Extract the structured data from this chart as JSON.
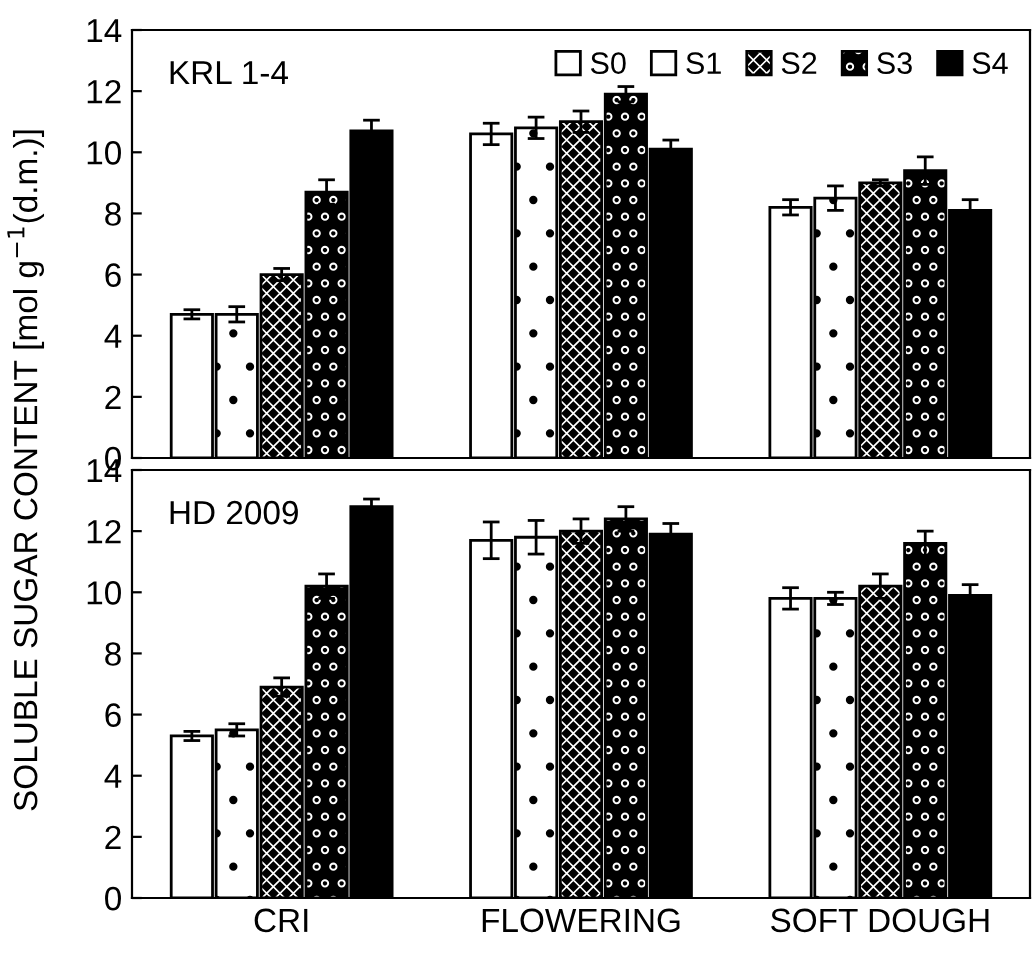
{
  "chart_data": [
    {
      "type": "bar",
      "title": "KRL 1-4",
      "categories": [
        null,
        null,
        null
      ],
      "ylim": [
        0,
        14
      ],
      "yticks": [
        0,
        2,
        4,
        6,
        8,
        10,
        12,
        14
      ],
      "tick_labels": "y",
      "legend": "top right",
      "grid": false,
      "series": [
        {
          "name": "S0",
          "color": "#ffffff",
          "values": [
            4.7,
            10.6,
            8.2
          ],
          "errors": [
            0.15,
            0.35,
            0.25
          ]
        },
        {
          "name": "S1",
          "color": "#ffffff",
          "values": [
            4.7,
            10.8,
            8.5
          ],
          "errors": [
            0.25,
            0.35,
            0.4
          ]
        },
        {
          "name": "S2",
          "color": "#000000",
          "values": [
            6.0,
            11.0,
            9.0
          ],
          "errors": [
            0.2,
            0.35,
            0.1
          ]
        },
        {
          "name": "S3",
          "color": "#000000",
          "values": [
            8.7,
            11.9,
            9.4
          ],
          "errors": [
            0.4,
            0.25,
            0.45
          ]
        },
        {
          "name": "S4",
          "color": "#000000",
          "values": [
            10.7,
            10.1,
            8.1
          ],
          "errors": [
            0.35,
            0.3,
            0.35
          ]
        }
      ]
    },
    {
      "type": "bar",
      "title": "HD 2009",
      "ylabel": "SOLUBLE SUGAR CONTENT [mol g$^{−1}$(d.m.)]",
      "categories": [
        "CRI",
        "FLOWERING",
        "SOFT DOUGH"
      ],
      "ylim": [
        0,
        14
      ],
      "yticks": [
        0,
        2,
        4,
        6,
        8,
        10,
        12,
        14
      ],
      "grid": false,
      "series": [
        {
          "color": "#ffffff",
          "values": [
            5.3,
            11.7,
            9.8
          ],
          "errors": [
            0.15,
            0.6,
            0.35
          ]
        },
        {
          "color": "#ffffff",
          "values": [
            5.5,
            11.8,
            9.8
          ],
          "errors": [
            0.2,
            0.55,
            0.2
          ]
        },
        {
          "color": "#000000",
          "values": [
            6.9,
            12.0,
            10.2
          ],
          "errors": [
            0.3,
            0.4,
            0.4
          ]
        },
        {
          "color": "#000000",
          "values": [
            10.2,
            12.4,
            11.6
          ],
          "errors": [
            0.4,
            0.4,
            0.4
          ]
        },
        {
          "color": "#000000",
          "values": [
            12.8,
            11.9,
            9.9
          ],
          "errors": [
            0.25,
            0.35,
            0.35
          ]
        }
      ]
    }
  ]
}
